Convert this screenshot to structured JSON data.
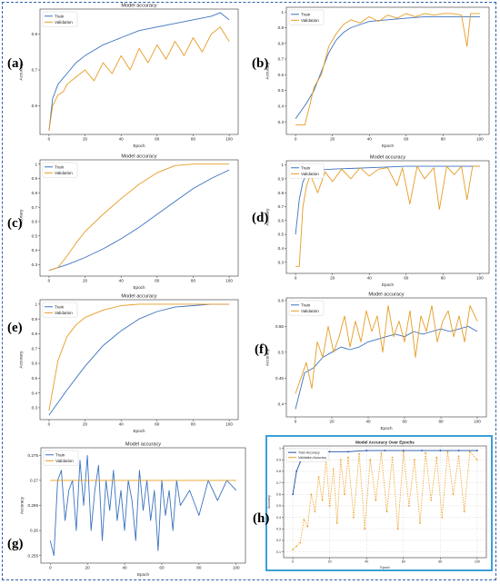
{
  "figure": {
    "panel_letters": [
      "(a)",
      "(b)",
      "(c)",
      "(d)",
      "(e)",
      "(f)",
      "(g)",
      "(h)"
    ]
  },
  "colors": {
    "train": "#3b73c0",
    "validation": "#e69c24",
    "h_train": "#1f4fa8",
    "h_validation": "#f0a020",
    "frame": "#2d5fa8",
    "h_border": "#3aa0d8"
  },
  "chart_data": [
    {
      "id": "a",
      "type": "line",
      "title": "Model accuracy",
      "xlabel": "Epoch",
      "ylabel": "Accuracy",
      "xlim": [
        -5,
        105
      ],
      "ylim": [
        0.52,
        0.87
      ],
      "xticks": [
        0,
        20,
        40,
        60,
        80,
        100
      ],
      "yticks": [
        0.6,
        0.7,
        0.8
      ],
      "legend": "top-left",
      "grid": false,
      "series": [
        {
          "name": "Train",
          "color": "#3b73c0",
          "x": [
            0,
            2,
            5,
            10,
            15,
            20,
            30,
            40,
            50,
            60,
            70,
            80,
            90,
            95,
            100
          ],
          "y": [
            0.53,
            0.62,
            0.66,
            0.69,
            0.72,
            0.74,
            0.77,
            0.79,
            0.81,
            0.82,
            0.83,
            0.84,
            0.85,
            0.86,
            0.84
          ]
        },
        {
          "name": "Validation",
          "color": "#e69c24",
          "x": [
            0,
            2,
            5,
            8,
            10,
            15,
            20,
            25,
            30,
            35,
            40,
            45,
            50,
            55,
            60,
            65,
            70,
            75,
            80,
            85,
            90,
            95,
            100
          ],
          "y": [
            0.53,
            0.6,
            0.63,
            0.64,
            0.66,
            0.68,
            0.7,
            0.67,
            0.72,
            0.69,
            0.74,
            0.7,
            0.76,
            0.72,
            0.77,
            0.73,
            0.78,
            0.74,
            0.79,
            0.75,
            0.8,
            0.82,
            0.78
          ]
        }
      ]
    },
    {
      "id": "b",
      "type": "line",
      "title": "",
      "xlabel": "Epoch",
      "ylabel": "Accuracy",
      "xlim": [
        -5,
        105
      ],
      "ylim": [
        0.22,
        1.03
      ],
      "xticks": [
        0,
        20,
        40,
        60,
        80,
        100
      ],
      "yticks": [
        0.3,
        0.4,
        0.5,
        0.6,
        0.7,
        0.8,
        0.9,
        1.0
      ],
      "legend": "top-left",
      "grid": false,
      "series": [
        {
          "name": "Train",
          "color": "#3b73c0",
          "x": [
            0,
            3,
            6,
            10,
            14,
            18,
            22,
            26,
            30,
            35,
            40,
            50,
            60,
            70,
            80,
            90,
            100
          ],
          "y": [
            0.32,
            0.37,
            0.42,
            0.5,
            0.62,
            0.74,
            0.82,
            0.87,
            0.9,
            0.92,
            0.94,
            0.95,
            0.96,
            0.97,
            0.97,
            0.97,
            0.97
          ]
        },
        {
          "name": "Validation",
          "color": "#e69c24",
          "x": [
            0,
            2,
            5,
            8,
            10,
            14,
            18,
            22,
            26,
            30,
            35,
            40,
            45,
            50,
            55,
            60,
            65,
            70,
            75,
            80,
            85,
            90,
            93,
            95,
            100
          ],
          "y": [
            0.28,
            0.28,
            0.28,
            0.42,
            0.52,
            0.6,
            0.78,
            0.86,
            0.92,
            0.95,
            0.93,
            0.97,
            0.94,
            0.98,
            0.96,
            0.99,
            0.97,
            0.99,
            0.98,
            0.99,
            0.99,
            0.98,
            0.78,
            0.99,
            0.99
          ]
        }
      ]
    },
    {
      "id": "c",
      "type": "line",
      "title": "Model accuracy",
      "xlabel": "Epoch",
      "ylabel": "Accuracy",
      "xlim": [
        -5,
        105
      ],
      "ylim": [
        0.22,
        1.03
      ],
      "xticks": [
        0,
        20,
        40,
        60,
        80,
        100
      ],
      "yticks": [
        0.3,
        0.4,
        0.5,
        0.6,
        0.7,
        0.8,
        0.9,
        1.0
      ],
      "legend": "top-left",
      "grid": false,
      "series": [
        {
          "name": "Train",
          "color": "#3b73c0",
          "x": [
            0,
            10,
            20,
            30,
            40,
            50,
            60,
            70,
            80,
            90,
            100
          ],
          "y": [
            0.26,
            0.3,
            0.35,
            0.41,
            0.48,
            0.56,
            0.65,
            0.74,
            0.83,
            0.9,
            0.96
          ]
        },
        {
          "name": "Validation",
          "color": "#e69c24",
          "x": [
            0,
            5,
            10,
            15,
            20,
            30,
            40,
            50,
            60,
            70,
            80,
            90,
            100
          ],
          "y": [
            0.26,
            0.28,
            0.36,
            0.45,
            0.53,
            0.65,
            0.76,
            0.86,
            0.94,
            0.99,
            1.0,
            1.0,
            1.0
          ]
        }
      ]
    },
    {
      "id": "d",
      "type": "line",
      "title": "Model accuracy",
      "xlabel": "Epoch",
      "ylabel": "Accuracy",
      "xlim": [
        -5,
        105
      ],
      "ylim": [
        0.22,
        1.03
      ],
      "xticks": [
        0,
        20,
        40,
        60,
        80,
        100
      ],
      "yticks": [
        0.3,
        0.4,
        0.5,
        0.6,
        0.7,
        0.8,
        0.9,
        1.0
      ],
      "legend": "top-left",
      "grid": false,
      "series": [
        {
          "name": "Train",
          "color": "#3b73c0",
          "x": [
            0,
            2,
            4,
            6,
            10,
            20,
            40,
            60,
            80,
            100
          ],
          "y": [
            0.5,
            0.75,
            0.88,
            0.93,
            0.96,
            0.97,
            0.98,
            0.99,
            0.99,
            0.99
          ]
        },
        {
          "name": "Validation",
          "color": "#e69c24",
          "x": [
            0,
            2,
            4,
            6,
            8,
            12,
            16,
            20,
            25,
            30,
            35,
            40,
            45,
            50,
            55,
            58,
            62,
            66,
            70,
            75,
            78,
            82,
            86,
            90,
            93,
            96,
            100
          ],
          "y": [
            0.27,
            0.27,
            0.7,
            0.85,
            0.93,
            0.8,
            0.95,
            0.88,
            0.97,
            0.9,
            0.98,
            0.92,
            0.97,
            0.98,
            0.85,
            0.98,
            0.72,
            0.99,
            0.9,
            0.98,
            0.68,
            0.99,
            0.93,
            0.99,
            0.75,
            0.99,
            0.99
          ]
        }
      ]
    },
    {
      "id": "e",
      "type": "line",
      "title": "Model accuracy",
      "xlabel": "Epoch",
      "ylabel": "Accuracy",
      "xlim": [
        -5,
        105
      ],
      "ylim": [
        0.22,
        1.03
      ],
      "xticks": [
        0,
        20,
        40,
        60,
        80,
        100
      ],
      "yticks": [
        0.3,
        0.4,
        0.5,
        0.6,
        0.7,
        0.8,
        0.9,
        1.0
      ],
      "legend": "top-left",
      "grid": false,
      "series": [
        {
          "name": "Train",
          "color": "#3b73c0",
          "x": [
            0,
            10,
            20,
            30,
            40,
            50,
            60,
            70,
            80,
            90,
            100
          ],
          "y": [
            0.25,
            0.42,
            0.58,
            0.72,
            0.82,
            0.9,
            0.95,
            0.98,
            0.99,
            1.0,
            1.0
          ]
        },
        {
          "name": "Validation",
          "color": "#e69c24",
          "x": [
            0,
            5,
            10,
            15,
            20,
            30,
            40,
            50,
            60,
            70,
            80,
            90,
            100
          ],
          "y": [
            0.28,
            0.62,
            0.78,
            0.86,
            0.91,
            0.96,
            0.99,
            1.0,
            1.0,
            1.0,
            1.0,
            1.0,
            1.0
          ]
        }
      ]
    },
    {
      "id": "f",
      "type": "line",
      "title": "Model accuracy",
      "xlabel": "Epoch",
      "ylabel": "Accuracy",
      "xlim": [
        -5,
        105
      ],
      "ylim": [
        0.375,
        0.605
      ],
      "xticks": [
        0,
        20,
        40,
        60,
        80,
        100
      ],
      "yticks": [
        0.4,
        0.45,
        0.5,
        0.55,
        0.6
      ],
      "legend": "top-left",
      "grid": false,
      "series": [
        {
          "name": "Train",
          "color": "#3b73c0",
          "x": [
            0,
            5,
            10,
            15,
            20,
            25,
            30,
            35,
            40,
            45,
            50,
            55,
            60,
            65,
            70,
            75,
            80,
            85,
            90,
            95,
            100
          ],
          "y": [
            0.39,
            0.46,
            0.47,
            0.49,
            0.5,
            0.51,
            0.505,
            0.51,
            0.52,
            0.525,
            0.53,
            0.535,
            0.53,
            0.54,
            0.535,
            0.54,
            0.545,
            0.54,
            0.545,
            0.55,
            0.54
          ]
        },
        {
          "name": "Validation",
          "color": "#e69c24",
          "x": [
            0,
            3,
            6,
            9,
            12,
            15,
            18,
            21,
            24,
            27,
            30,
            33,
            36,
            39,
            42,
            45,
            48,
            51,
            54,
            57,
            60,
            63,
            66,
            69,
            72,
            75,
            78,
            81,
            84,
            87,
            90,
            93,
            96,
            100
          ],
          "y": [
            0.42,
            0.45,
            0.48,
            0.43,
            0.52,
            0.49,
            0.55,
            0.5,
            0.53,
            0.57,
            0.51,
            0.56,
            0.52,
            0.58,
            0.54,
            0.57,
            0.5,
            0.59,
            0.53,
            0.56,
            0.52,
            0.58,
            0.49,
            0.57,
            0.54,
            0.59,
            0.52,
            0.56,
            0.58,
            0.53,
            0.57,
            0.52,
            0.59,
            0.56
          ]
        }
      ]
    },
    {
      "id": "g",
      "type": "line",
      "title": "Model accuracy",
      "xlabel": "Epoch",
      "ylabel": "Accuracy",
      "xlim": [
        -5,
        105
      ],
      "ylim": [
        0.2535,
        0.2765
      ],
      "xticks": [
        0,
        20,
        40,
        60,
        80,
        100
      ],
      "yticks": [
        0.255,
        0.26,
        0.265,
        0.27,
        0.275
      ],
      "legend": "top-left",
      "grid": false,
      "series": [
        {
          "name": "Train",
          "color": "#3b73c0",
          "x": [
            0,
            2,
            4,
            6,
            8,
            10,
            12,
            14,
            16,
            18,
            20,
            22,
            24,
            26,
            28,
            30,
            32,
            34,
            36,
            38,
            40,
            42,
            44,
            46,
            48,
            50,
            52,
            54,
            56,
            58,
            60,
            62,
            64,
            66,
            68,
            70,
            75,
            80,
            85,
            90,
            95,
            100
          ],
          "y": [
            0.258,
            0.255,
            0.27,
            0.272,
            0.262,
            0.268,
            0.27,
            0.26,
            0.274,
            0.265,
            0.275,
            0.26,
            0.268,
            0.273,
            0.258,
            0.27,
            0.264,
            0.272,
            0.262,
            0.268,
            0.26,
            0.27,
            0.266,
            0.258,
            0.272,
            0.264,
            0.27,
            0.262,
            0.268,
            0.256,
            0.27,
            0.263,
            0.268,
            0.26,
            0.27,
            0.265,
            0.268,
            0.263,
            0.27,
            0.266,
            0.27,
            0.268
          ]
        },
        {
          "name": "Validation",
          "color": "#e69c24",
          "x": [
            0,
            5,
            10,
            20,
            30,
            40,
            50,
            60,
            70,
            80,
            90,
            100
          ],
          "y": [
            0.27,
            0.27,
            0.27,
            0.27,
            0.27,
            0.27,
            0.27,
            0.27,
            0.27,
            0.27,
            0.27,
            0.27
          ]
        }
      ]
    },
    {
      "id": "h",
      "type": "line",
      "title": "Model Accuracy Over Epochs",
      "xlabel": "Epoch",
      "ylabel": "Accuracy",
      "xlim": [
        -5,
        105
      ],
      "ylim": [
        0.05,
        1.02
      ],
      "xticks": [
        0,
        20,
        40,
        60,
        80,
        100
      ],
      "yticks": [
        0.1,
        0.2,
        0.3,
        0.4,
        0.5,
        0.6,
        0.7,
        0.8,
        0.9,
        1.0
      ],
      "legend": "top-left",
      "grid": true,
      "series": [
        {
          "name": "Train Accuracy",
          "color": "#1f4fa8",
          "x": [
            0,
            2,
            4,
            6,
            8,
            10,
            15,
            20,
            30,
            40,
            50,
            60,
            70,
            80,
            90,
            100
          ],
          "y": [
            0.6,
            0.8,
            0.88,
            0.92,
            0.94,
            0.95,
            0.96,
            0.97,
            0.97,
            0.98,
            0.98,
            0.98,
            0.98,
            0.98,
            0.98,
            0.98
          ]
        },
        {
          "name": "Validation Accuracy",
          "color": "#f0a020",
          "x": [
            0,
            2,
            4,
            6,
            8,
            10,
            12,
            14,
            16,
            18,
            20,
            22,
            24,
            26,
            28,
            30,
            33,
            36,
            39,
            42,
            45,
            48,
            51,
            54,
            57,
            60,
            63,
            66,
            69,
            72,
            75,
            78,
            81,
            84,
            87,
            90,
            93,
            96,
            100
          ],
          "y": [
            0.12,
            0.15,
            0.18,
            0.38,
            0.32,
            0.6,
            0.45,
            0.75,
            0.55,
            0.9,
            0.5,
            0.82,
            0.35,
            0.9,
            0.6,
            0.92,
            0.4,
            0.95,
            0.3,
            0.9,
            0.55,
            0.96,
            0.45,
            0.92,
            0.3,
            0.97,
            0.5,
            0.9,
            0.35,
            0.96,
            0.55,
            0.92,
            0.4,
            0.97,
            0.6,
            0.93,
            0.45,
            0.97,
            0.9
          ]
        }
      ]
    }
  ]
}
